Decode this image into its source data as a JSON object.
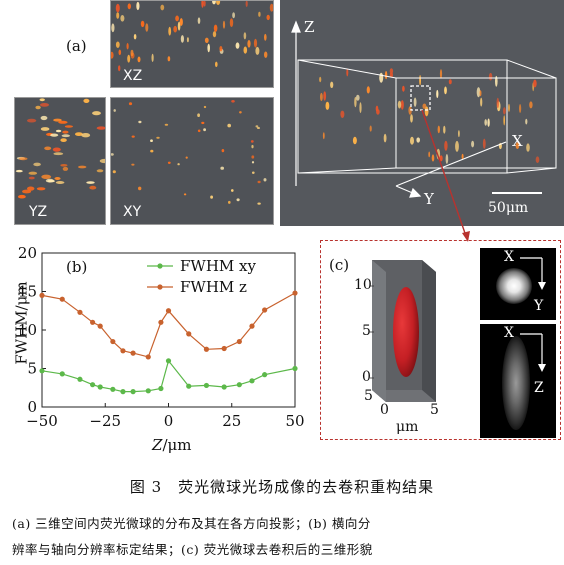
{
  "panel_a": {
    "label": "(a)",
    "xz_label": "XZ",
    "yz_label": "YZ",
    "xy_label": "XY",
    "axis_z": "Z",
    "axis_x": "X",
    "axis_y": "Y",
    "scale_bar": "50μm"
  },
  "panel_c": {
    "label": "(c)",
    "ticks_z": [
      "10",
      "5",
      "0"
    ],
    "ticks_x": [
      "5",
      "0",
      "5"
    ],
    "unit": "μm",
    "xy_x": "X",
    "xy_y": "Y",
    "xz_x": "X",
    "xz_z": "Z"
  },
  "chart_data": {
    "type": "line",
    "panel_label": "(b)",
    "ylabel_line1": "FWHM/",
    "ylabel_line2": "μm",
    "xlabel_italic": "Z",
    "xlabel_unit": "/μm",
    "xlim": [
      -50,
      50
    ],
    "ylim": [
      0,
      20
    ],
    "x_ticks": [
      -50,
      -25,
      0,
      25,
      50
    ],
    "y_ticks": [
      0,
      5,
      10,
      15,
      20
    ],
    "legend_position": "top-right",
    "series": [
      {
        "name": "FWHM xy",
        "color": "#5cb84a",
        "x": [
          -50,
          -42,
          -35,
          -30,
          -27,
          -22,
          -18,
          -14,
          -8,
          -3,
          0,
          8,
          15,
          22,
          28,
          33,
          38,
          50
        ],
        "y": [
          4.7,
          4.3,
          3.6,
          2.9,
          2.6,
          2.3,
          2.0,
          2.0,
          2.1,
          2.4,
          6.0,
          2.7,
          2.8,
          2.6,
          2.9,
          3.4,
          4.2,
          5.0
        ]
      },
      {
        "name": "FWHM z",
        "color": "#c8622e",
        "x": [
          -50,
          -42,
          -35,
          -30,
          -27,
          -22,
          -18,
          -14,
          -8,
          -3,
          0,
          8,
          15,
          22,
          28,
          33,
          38,
          50
        ],
        "y": [
          14.5,
          14.0,
          12.3,
          11.0,
          10.5,
          8.5,
          7.3,
          7.0,
          6.5,
          11.0,
          12.5,
          9.5,
          7.5,
          7.6,
          8.5,
          10.5,
          12.6,
          14.8
        ]
      }
    ]
  },
  "caption": {
    "title": "图 3　荧光微球光场成像的去卷积重构结果",
    "line1": "(a) 三维空间内荧光微球的分布及其在各方向投影；(b) 横向分",
    "line2": "辨率与轴向分辨率标定结果；(c) 荧光微球去卷积后的三维形貌"
  }
}
